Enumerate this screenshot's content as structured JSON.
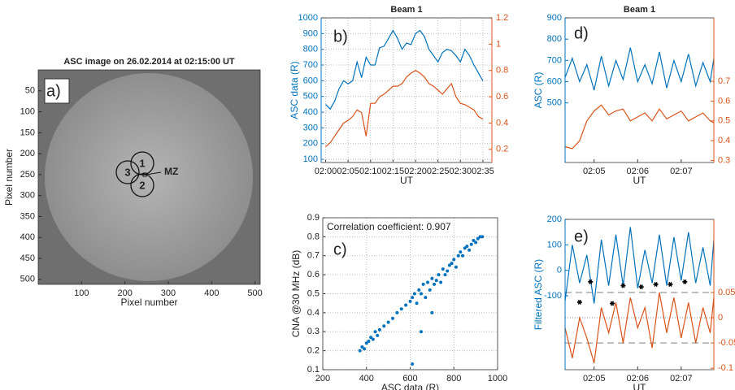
{
  "chart_data": [
    {
      "type": "image",
      "title": "ASC image on 26.02.2014 at 02:15:00 UT",
      "panel_label": "a)",
      "xlabel": "Pixel number",
      "ylabel": "Pixel number",
      "xlim": [
        0,
        512
      ],
      "ylim": [
        512,
        0
      ],
      "xticks": [
        100,
        200,
        300,
        400,
        500
      ],
      "yticks": [
        50,
        100,
        150,
        200,
        250,
        300,
        350,
        400,
        450,
        500
      ],
      "annotations": [
        "1",
        "2",
        "3",
        "MZ"
      ]
    },
    {
      "type": "line",
      "title": "Beam 1",
      "panel_label": "b)",
      "xlabel": "UT",
      "ylabel": "ASC data (R)",
      "grid": true,
      "x": [
        "02:00",
        "02:01",
        "02:02",
        "02:03",
        "02:04",
        "02:05",
        "02:06",
        "02:07",
        "02:08",
        "02:09",
        "02:10",
        "02:11",
        "02:12",
        "02:13",
        "02:14",
        "02:15",
        "02:16",
        "02:17",
        "02:18",
        "02:19",
        "02:20",
        "02:21",
        "02:22",
        "02:23",
        "02:24",
        "02:25",
        "02:26",
        "02:27",
        "02:28",
        "02:29",
        "02:30",
        "02:31",
        "02:32",
        "02:33",
        "02:34",
        "02:35"
      ],
      "xlim": [
        "01:59",
        "02:37"
      ],
      "xticks": [
        "02:00",
        "02:05",
        "02:10",
        "02:15",
        "02:20",
        "02:25",
        "02:30",
        "02:35"
      ],
      "ylim": [
        80,
        1000
      ],
      "yticks": [
        100,
        200,
        300,
        400,
        500,
        600,
        700,
        800,
        900,
        1000
      ],
      "y2lim": [
        0.1,
        1.2
      ],
      "y2ticks": [
        0.2,
        0.4,
        0.6,
        0.8,
        1,
        1.2
      ],
      "series": [
        {
          "color": "#0072bd",
          "values": [
            450,
            420,
            470,
            550,
            600,
            580,
            600,
            720,
            620,
            750,
            700,
            700,
            810,
            820,
            870,
            920,
            870,
            800,
            840,
            830,
            900,
            920,
            880,
            800,
            760,
            720,
            780,
            800,
            790,
            760,
            720,
            800,
            760,
            700,
            650,
            600
          ]
        },
        {
          "color": "#d95319",
          "axis": "y2",
          "values": [
            0.22,
            0.25,
            0.3,
            0.35,
            0.4,
            0.42,
            0.45,
            0.5,
            0.48,
            0.3,
            0.55,
            0.55,
            0.6,
            0.62,
            0.65,
            0.68,
            0.68,
            0.7,
            0.75,
            0.78,
            0.8,
            0.78,
            0.75,
            0.7,
            0.68,
            0.65,
            0.62,
            0.66,
            0.7,
            0.6,
            0.55,
            0.54,
            0.52,
            0.5,
            0.45,
            0.43
          ]
        }
      ]
    },
    {
      "type": "scatter",
      "panel_label": "c)",
      "annotation": "Correlation coefficient: 0.907",
      "xlabel": "ASC data (R)",
      "ylabel": "CNA @30 MHz (dB)",
      "grid": true,
      "color": "#0072bd",
      "x": [
        370,
        380,
        390,
        400,
        410,
        420,
        430,
        440,
        450,
        460,
        480,
        500,
        520,
        540,
        560,
        580,
        600,
        610,
        620,
        630,
        640,
        650,
        660,
        670,
        680,
        690,
        700,
        710,
        720,
        730,
        740,
        750,
        760,
        770,
        780,
        790,
        800,
        810,
        820,
        830,
        840,
        850,
        860,
        870,
        880,
        890,
        900,
        910,
        920,
        930,
        610,
        650,
        700
      ],
      "values": [
        0.2,
        0.22,
        0.21,
        0.24,
        0.25,
        0.27,
        0.26,
        0.3,
        0.28,
        0.31,
        0.33,
        0.35,
        0.37,
        0.4,
        0.42,
        0.44,
        0.46,
        0.48,
        0.5,
        0.45,
        0.52,
        0.5,
        0.55,
        0.48,
        0.56,
        0.52,
        0.58,
        0.55,
        0.57,
        0.6,
        0.56,
        0.63,
        0.6,
        0.62,
        0.65,
        0.66,
        0.68,
        0.64,
        0.7,
        0.72,
        0.7,
        0.74,
        0.75,
        0.73,
        0.76,
        0.78,
        0.77,
        0.79,
        0.8,
        0.8,
        0.13,
        0.3,
        0.4
      ],
      "xlim": [
        200,
        1000
      ],
      "xticks": [
        200,
        400,
        600,
        800,
        1000
      ],
      "ylim": [
        0.1,
        0.9
      ],
      "yticks": [
        0.1,
        0.2,
        0.3,
        0.4,
        0.5,
        0.6,
        0.7,
        0.8,
        0.9
      ]
    },
    {
      "type": "line",
      "title": "Beam 1",
      "panel_label": "d)",
      "xlabel": "UT",
      "ylabel": "ASC (R)",
      "x": [
        "02:04:20",
        "02:04:30",
        "02:04:40",
        "02:04:50",
        "02:05:00",
        "02:05:10",
        "02:05:20",
        "02:05:30",
        "02:05:40",
        "02:05:50",
        "02:06:00",
        "02:06:10",
        "02:06:20",
        "02:06:30",
        "02:06:40",
        "02:06:50",
        "02:07:00",
        "02:07:10",
        "02:07:20",
        "02:07:30",
        "02:07:40",
        "02:07:45"
      ],
      "xlim": [
        "02:04:20",
        "02:07:45"
      ],
      "xticks": [
        "02:05",
        "02:06",
        "02:07"
      ],
      "ylim": [
        220,
        900
      ],
      "yticks": [
        500,
        600,
        700,
        800,
        900
      ],
      "y2lim": [
        0.29,
        1.02
      ],
      "y2ticks": [
        0.3,
        0.4,
        0.5,
        0.6,
        0.7
      ],
      "series": [
        {
          "color": "#0072bd",
          "values": [
            620,
            710,
            600,
            680,
            560,
            720,
            580,
            700,
            610,
            760,
            600,
            680,
            590,
            740,
            570,
            700,
            600,
            730,
            580,
            690,
            600,
            710
          ]
        },
        {
          "color": "#d95319",
          "axis": "y2",
          "values": [
            0.37,
            0.36,
            0.4,
            0.5,
            0.55,
            0.58,
            0.53,
            0.55,
            0.56,
            0.5,
            0.52,
            0.54,
            0.5,
            0.56,
            0.51,
            0.53,
            0.55,
            0.5,
            0.52,
            0.54,
            0.5,
            0.49
          ]
        }
      ]
    },
    {
      "type": "line",
      "panel_label": "e)",
      "xlabel": "UT",
      "ylabel": "Filtered ASC (R)",
      "x": [
        "02:04:20",
        "02:04:30",
        "02:04:40",
        "02:04:50",
        "02:05:00",
        "02:05:10",
        "02:05:20",
        "02:05:30",
        "02:05:40",
        "02:05:50",
        "02:06:00",
        "02:06:10",
        "02:06:20",
        "02:06:30",
        "02:06:40",
        "02:06:50",
        "02:07:00",
        "02:07:10",
        "02:07:20",
        "02:07:30",
        "02:07:40",
        "02:07:45"
      ],
      "xlim": [
        "02:04:20",
        "02:07:45"
      ],
      "xticks": [
        "02:05",
        "02:06",
        "02:07"
      ],
      "ylim": [
        -390,
        200
      ],
      "yticks": [
        -100,
        0,
        100,
        200
      ],
      "y2lim": [
        -0.103,
        0.195
      ],
      "y2ticks": [
        -0.1,
        -0.05,
        0,
        0.05
      ],
      "y2_lines": [
        {
          "value": 0.05,
          "style": "dashed"
        },
        {
          "value": 0,
          "style": "dotted"
        },
        {
          "value": -0.05,
          "style": "dashed"
        }
      ],
      "series": [
        {
          "color": "#0072bd",
          "values": [
            -120,
            100,
            -50,
            60,
            -130,
            120,
            -60,
            140,
            -60,
            170,
            -70,
            80,
            -50,
            140,
            -60,
            130,
            -40,
            150,
            -50,
            90,
            -60,
            120
          ]
        },
        {
          "color": "#d95319",
          "axis": "y2",
          "values": [
            -0.02,
            -0.08,
            0,
            -0.04,
            -0.09,
            0.02,
            -0.03,
            0.03,
            -0.05,
            0.04,
            -0.02,
            0.02,
            -0.06,
            0.05,
            -0.03,
            0.04,
            -0.04,
            0.03,
            -0.05,
            0.02,
            -0.03,
            0.04
          ]
        }
      ],
      "markers": {
        "color": "#000000",
        "x": [
          "02:04:40",
          "02:04:55",
          "02:05:25",
          "02:05:40",
          "02:06:05",
          "02:06:25",
          "02:06:45",
          "02:07:05"
        ],
        "values": [
          -125,
          -45,
          -130,
          -60,
          -65,
          -55,
          -55,
          -45
        ]
      }
    }
  ]
}
